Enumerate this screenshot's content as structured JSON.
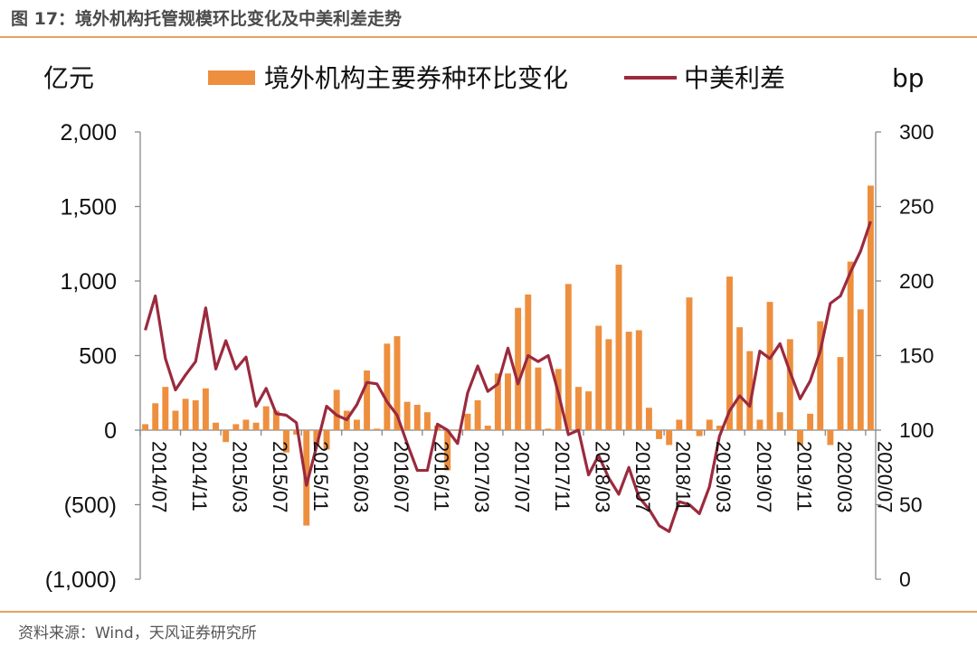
{
  "title": "图 17：境外机构托管规模环比变化及中美利差走势",
  "source": "资料来源：Wind，天风证券研究所",
  "colors": {
    "bar": "#ed8f3e",
    "line": "#9b2a3e",
    "negative_tick": "#c0392b",
    "rule": "#e8a060"
  },
  "chart_data": {
    "type": "bar+line",
    "left_axis_unit": "亿元",
    "right_axis_unit": "bp",
    "left_ylim": [
      -1000,
      2000
    ],
    "right_ylim": [
      0,
      300
    ],
    "left_ticks": [
      {
        "value": 2000,
        "label": "2,000"
      },
      {
        "value": 1500,
        "label": "1,500"
      },
      {
        "value": 1000,
        "label": "1,000"
      },
      {
        "value": 500,
        "label": "500"
      },
      {
        "value": 0,
        "label": "0"
      },
      {
        "value": -500,
        "label": "(500)"
      },
      {
        "value": -1000,
        "label": "(1,000)"
      }
    ],
    "right_ticks": [
      {
        "value": 300,
        "label": "300"
      },
      {
        "value": 250,
        "label": "250"
      },
      {
        "value": 200,
        "label": "200"
      },
      {
        "value": 150,
        "label": "150"
      },
      {
        "value": 100,
        "label": "100"
      },
      {
        "value": 50,
        "label": "50"
      },
      {
        "value": 0,
        "label": "0"
      }
    ],
    "x_tick_labels": [
      "2014/07",
      "2014/11",
      "2015/03",
      "2015/07",
      "2015/11",
      "2016/03",
      "2016/07",
      "2016/11",
      "2017/03",
      "2017/07",
      "2017/11",
      "2018/03",
      "2018/07",
      "2018/11",
      "2019/03",
      "2019/07",
      "2019/11",
      "2020/03",
      "2020/07"
    ],
    "grid": false,
    "legend_position": "top",
    "series": [
      {
        "name": "境外机构主要券种环比变化",
        "type": "bar",
        "axis": "left",
        "values": [
          40,
          180,
          290,
          130,
          210,
          200,
          280,
          50,
          -80,
          40,
          70,
          50,
          160,
          130,
          -150,
          -30,
          -640,
          -100,
          -130,
          270,
          130,
          70,
          400,
          10,
          580,
          630,
          190,
          170,
          120,
          30,
          -270,
          -5,
          110,
          200,
          30,
          380,
          380,
          820,
          910,
          420,
          10,
          410,
          980,
          290,
          260,
          700,
          610,
          1110,
          660,
          670,
          150,
          -60,
          -100,
          70,
          890,
          -40,
          70,
          30,
          1030,
          690,
          530,
          70,
          860,
          120,
          610,
          -100,
          110,
          730,
          -100,
          490,
          1130,
          810,
          1640
        ]
      },
      {
        "name": "中美利差",
        "type": "line",
        "axis": "right",
        "values": [
          167,
          190,
          148,
          127,
          137,
          146,
          182,
          141,
          160,
          141,
          149,
          116,
          128,
          111,
          110,
          105,
          63,
          89,
          116,
          110,
          107,
          117,
          132,
          131,
          119,
          110,
          91,
          73,
          73,
          104,
          100,
          91,
          125,
          143,
          126,
          131,
          155,
          131,
          150,
          146,
          150,
          125,
          97,
          100,
          70,
          83,
          68,
          57,
          75,
          55,
          47,
          36,
          32,
          52,
          50,
          44,
          62,
          96,
          113,
          123,
          116,
          153,
          148,
          158,
          139,
          121,
          133,
          153,
          185,
          190,
          206,
          220,
          240
        ]
      }
    ]
  }
}
